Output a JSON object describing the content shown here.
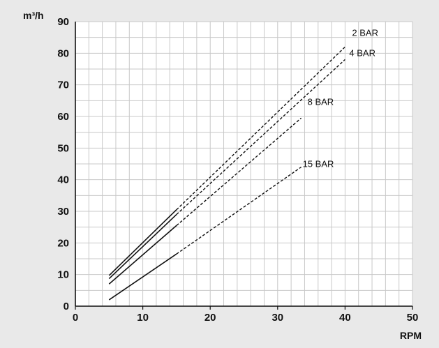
{
  "chart_data": {
    "type": "line",
    "xlabel": "RPM",
    "ylabel": "m³/h",
    "xlim": [
      0,
      50
    ],
    "ylim": [
      0,
      90
    ],
    "xticks": [
      0,
      10,
      20,
      30,
      40,
      50
    ],
    "yticks": [
      0,
      10,
      20,
      30,
      40,
      50,
      60,
      70,
      80,
      90
    ],
    "grid": true,
    "minor_grid_step": {
      "x": 2,
      "y": 5
    },
    "solid_until_x": 15,
    "series": [
      {
        "name": "2 BAR",
        "x": [
          5,
          15,
          40
        ],
        "y": [
          9.7,
          30.5,
          82
        ]
      },
      {
        "name": "4 BAR",
        "x": [
          5,
          15,
          40
        ],
        "y": [
          8.7,
          29,
          78
        ]
      },
      {
        "name": "8 BAR",
        "x": [
          5,
          15,
          33.5
        ],
        "y": [
          7,
          25.5,
          59.5
        ]
      },
      {
        "name": "15 BAR",
        "x": [
          5,
          15,
          33.5
        ],
        "y": [
          2,
          16.5,
          44
        ]
      }
    ],
    "colors": {
      "background": "#e9e9e9",
      "plot_background": "#ffffff",
      "grid": "#c8c8c8",
      "line": "#111111"
    }
  }
}
